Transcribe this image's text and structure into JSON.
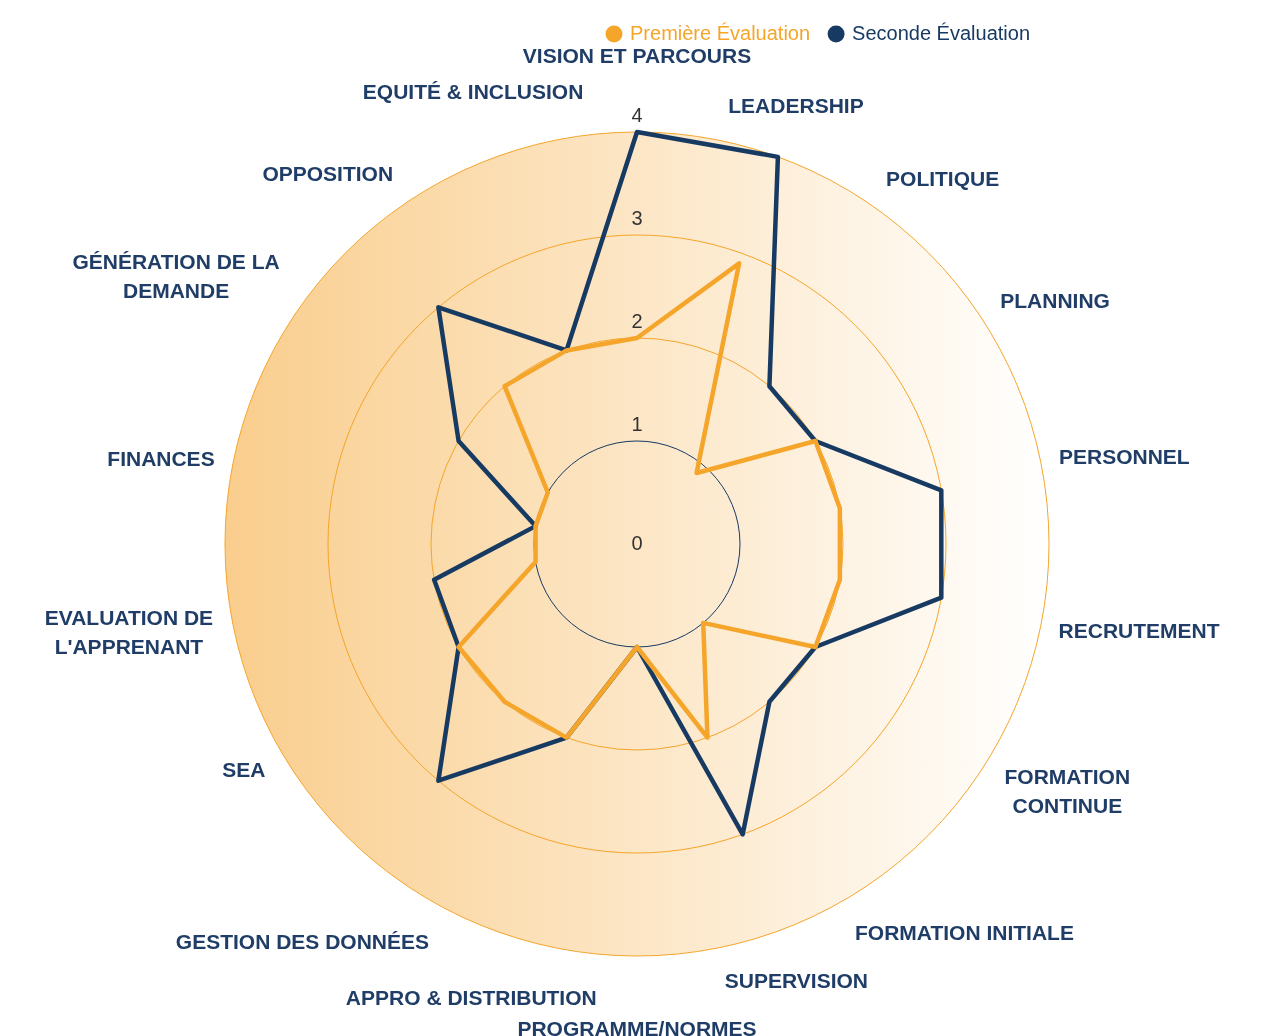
{
  "chart_data": {
    "type": "radar",
    "categories": [
      "VISION ET PARCOURS",
      "LEADERSHIP",
      "POLITIQUE",
      "PLANNING",
      "PERSONNEL",
      "RECRUTEMENT",
      "FORMATION CONTINUE",
      "FORMATION INITIALE",
      "SUPERVISION",
      "PROGRAMME/NORMES",
      "APPRO & DISTRIBUTION",
      "GESTION DES DONNÉES",
      "SEA",
      "EVALUATION DE L'APPRENANT",
      "FINANCES",
      "GÉNÉRATION DE LA DEMANDE",
      "OPPOSITION",
      "EQUITÉ & INCLUSION"
    ],
    "series": [
      {
        "name": "Première Évaluation",
        "color": "#f5a52a",
        "values": [
          2,
          2.9,
          0.9,
          2,
          2,
          2,
          2,
          1,
          2,
          1,
          2,
          2,
          2,
          1,
          1,
          1,
          2,
          2
        ]
      },
      {
        "name": "Seconde Évaluation",
        "color": "#173a63",
        "values": [
          4,
          4,
          2,
          2,
          3,
          3,
          2,
          2,
          3,
          1,
          2,
          3,
          2,
          2,
          1,
          2,
          3,
          2
        ]
      }
    ],
    "ylim": [
      0,
      4
    ],
    "yticks": [
      0,
      1,
      2,
      3,
      4
    ],
    "grid": true,
    "legend": "top right",
    "marker": "none",
    "line_style": "solid"
  }
}
